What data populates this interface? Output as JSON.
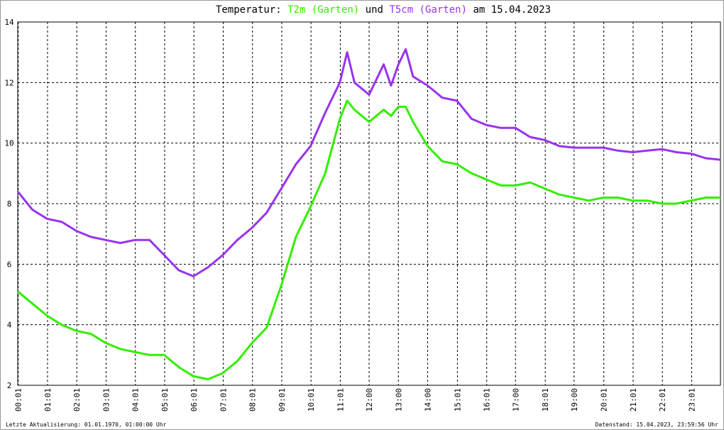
{
  "chart_data": {
    "type": "line",
    "title_prefix": "Temperatur:",
    "title_joiner": "und",
    "title_suffix": "am 15.04.2023",
    "footer_left": "Letzte Aktualisierung: 01.01.1970, 01:00:00 Uhr",
    "footer_right": "Datenstand: 15.04.2023, 23:59:56 Uhr",
    "x": [
      "00:00",
      "00:30",
      "01:00",
      "01:30",
      "02:00",
      "02:30",
      "03:00",
      "03:30",
      "04:00",
      "04:30",
      "05:00",
      "05:30",
      "06:00",
      "06:30",
      "07:00",
      "07:30",
      "08:00",
      "08:30",
      "09:00",
      "09:30",
      "10:00",
      "10:30",
      "11:00",
      "11:15",
      "11:30",
      "12:00",
      "12:30",
      "12:45",
      "13:00",
      "13:15",
      "13:30",
      "14:00",
      "14:30",
      "15:00",
      "15:30",
      "16:00",
      "16:30",
      "17:00",
      "17:30",
      "18:00",
      "18:30",
      "19:00",
      "19:30",
      "20:00",
      "20:30",
      "21:00",
      "21:30",
      "22:00",
      "22:30",
      "23:00",
      "23:30",
      "24:00"
    ],
    "series": [
      {
        "name": "T2m (Garten)",
        "color": "#33ee00",
        "values": [
          5.1,
          4.7,
          4.3,
          4.0,
          3.8,
          3.7,
          3.4,
          3.2,
          3.1,
          3.0,
          3.0,
          2.6,
          2.3,
          2.2,
          2.4,
          2.8,
          3.4,
          3.9,
          5.3,
          6.9,
          7.9,
          9.0,
          10.8,
          11.4,
          11.1,
          10.7,
          11.1,
          10.9,
          11.2,
          11.2,
          10.7,
          9.9,
          9.4,
          9.3,
          9.0,
          8.8,
          8.6,
          8.6,
          8.7,
          8.5,
          8.3,
          8.2,
          8.1,
          8.2,
          8.2,
          8.1,
          8.1,
          8.0,
          8.0,
          8.1,
          8.2,
          8.2
        ]
      },
      {
        "name": "T5cm (Garten)",
        "color": "#9933ee",
        "values": [
          8.4,
          7.8,
          7.5,
          7.4,
          7.1,
          6.9,
          6.8,
          6.7,
          6.8,
          6.8,
          6.3,
          5.8,
          5.6,
          5.9,
          6.3,
          6.8,
          7.2,
          7.7,
          8.5,
          9.3,
          9.9,
          11.0,
          12.0,
          13.0,
          12.0,
          11.6,
          12.6,
          11.9,
          12.6,
          13.1,
          12.2,
          11.9,
          11.5,
          11.4,
          10.8,
          10.6,
          10.5,
          10.5,
          10.2,
          10.1,
          9.9,
          9.85,
          9.85,
          9.85,
          9.75,
          9.7,
          9.75,
          9.8,
          9.7,
          9.65,
          9.5,
          9.45
        ]
      }
    ],
    "xlim": [
      "00:00",
      "24:00"
    ],
    "xticks": [
      "00:01",
      "01:01",
      "02:01",
      "03:01",
      "04:01",
      "05:01",
      "06:01",
      "07:01",
      "08:01",
      "09:01",
      "10:01",
      "11:01",
      "12:00",
      "13:00",
      "14:00",
      "15:01",
      "16:01",
      "17:00",
      "18:01",
      "19:00",
      "20:01",
      "21:01",
      "22:01",
      "23:01"
    ],
    "ylim": [
      2,
      14
    ],
    "yticks": [
      2,
      4,
      6,
      8,
      10,
      12,
      14
    ],
    "grid": true
  }
}
